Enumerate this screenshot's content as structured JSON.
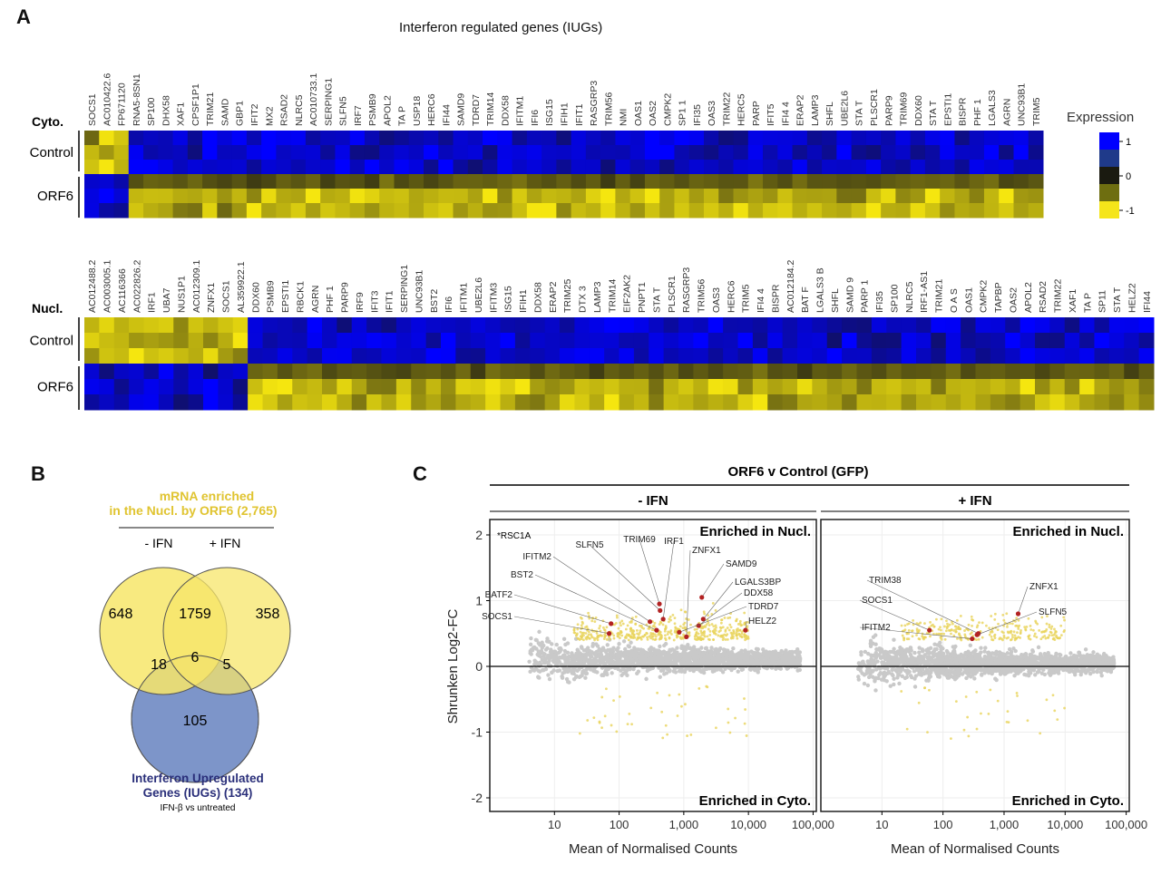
{
  "panel_a": {
    "letter": "A",
    "title": "Interferon regulated genes (IUGs)",
    "legend": {
      "title": "Expression",
      "ticks": [
        "1",
        "0",
        "-1"
      ],
      "colors": [
        "#0000ff",
        "#1f3a8a",
        "#1a1a10",
        "#6e6e10",
        "#f5e51a"
      ]
    },
    "cyto": {
      "label": "Cyto.",
      "groups": [
        "Control",
        "ORF6"
      ],
      "genes": [
        "SOCS1",
        "AC010422.6",
        "FP671120",
        "RNA5-8SN1",
        "SP100",
        "DHX58",
        "XAF1",
        "CPSF1P1",
        "TRIM21",
        "SAMD",
        "GBP1",
        "IFIT2",
        "MX2",
        "RSAD2",
        "NLRC5",
        "AC010733.1",
        "SERPING1",
        "SLFN5",
        "IRF7",
        "PSMB9",
        "APOL2",
        "TA P",
        "USP18",
        "HERC6",
        "IFI44",
        "SAMD9",
        "TDRD7",
        "TRIM14",
        "DDX58",
        "IFITM1",
        "IFI6",
        "ISG15",
        "IFIH1",
        "IFIT1",
        "RASGRP3",
        "TRIM56",
        "NMI",
        "OAS1",
        "OAS2",
        "CMPK2",
        "SP1 1",
        "IFI35",
        "OAS3",
        "TRIM22",
        "HERC5",
        "PARP",
        "IFIT5",
        "IFI4 4",
        "ERAP2",
        "LAMP3",
        "SHFL",
        "UBE2L6",
        "STA T",
        "PLSCR1",
        "PARP9",
        "TRIM69",
        "DDX60",
        "STA T",
        "EPSTI1",
        "BISPR",
        "PHF 1",
        "LGALS3",
        "AGRN",
        "UNC93B1",
        "TRIM5"
      ],
      "reversed_gene_count": 3
    },
    "nucl": {
      "label": "Nucl.",
      "groups": [
        "Control",
        "ORF6"
      ],
      "genes": [
        "AC012488.2",
        "AC003005.1",
        "AC116366",
        "AC022826.2",
        "IRF1",
        "UBA7",
        "NUS1P1",
        "AC012309.1",
        "ZNFX1",
        "SOCS1",
        "AL359922.1",
        "DDX60",
        "PSMB9",
        "EPSTI1",
        "RBCK1",
        "AGRN",
        "PHF 1",
        "PARP9",
        "IRF9",
        "IFIT3",
        "IFIT1",
        "SERPING1",
        "UNC93B1",
        "BST2",
        "IFI6",
        "IFITM1",
        "UBE2L6",
        "IFITM3",
        "ISG15",
        "IFIH1",
        "DDX58",
        "ERAP2",
        "TRIM25",
        "DTX 3",
        "LAMP3",
        "TRIM14",
        "EIF2AK2",
        "PNPT1",
        "STA T",
        "PLSCR1",
        "RASGRP3",
        "TRIM56",
        "OAS3",
        "HERC6",
        "TRIM5",
        "IFI4 4",
        "BISPR",
        "AC012184.2",
        "BAT F",
        "LGALS3 B",
        "SHFL",
        "SAMD 9",
        "PARP 1",
        "IFI35",
        "SP100",
        "NLRC5",
        "IRF1-AS1",
        "TRIM21",
        "O A S",
        "OAS1",
        "CMPK2",
        "TAPBP",
        "OAS2",
        "APOL2",
        "RSAD2",
        "TRIM22",
        "XAF1",
        "TA P",
        "SP11",
        "STA T",
        "HELZ2",
        "IFI44"
      ],
      "reversed_gene_count": 11
    }
  },
  "panel_b": {
    "letter": "B",
    "top_title_line1": "mRNA enriched",
    "top_title_line2": "in the Nucl. by ORF6 (2,765)",
    "set_minus_ifn": "- IFN",
    "set_plus_ifn": "+ IFN",
    "bottom_title_line1": "Interferon Upregulated",
    "bottom_title_line2": "Genes (IUGs) (134)",
    "bottom_subtitle": "IFN-β vs untreated",
    "counts": {
      "minus_only": "648",
      "both_ifn": "1759",
      "plus_only": "358",
      "minus_iug": "18",
      "all_three": "6",
      "plus_iug": "5",
      "iug_only": "105"
    },
    "colors": {
      "nucl": "#f7e66a",
      "iug": "#7d95c9",
      "title_yellow": "#e0c431",
      "title_blue": "#2a2f7a"
    }
  },
  "chart_data": [
    {
      "type": "scatter",
      "panel": "C",
      "title": "ORF6 v Control (GFP)",
      "subtitle": "- IFN",
      "xlabel": "Mean of Normalised Counts",
      "ylabel": "Shrunken Log2-FC",
      "xscale": "log",
      "xticks": [
        "10",
        "100",
        "1,000",
        "10,000",
        "100,000"
      ],
      "yticks": [
        "2",
        "1",
        "0",
        "-1",
        "-2"
      ],
      "ylim": [
        -2.3,
        2.3
      ],
      "grid": true,
      "annotation_top": "Enriched in Nucl.",
      "annotation_bottom": "Enriched in Cyto.",
      "colors": {
        "background": "#c8c8c8",
        "enriched": "#e8d35a",
        "highlight": "#b22222"
      },
      "labels": [
        {
          "gene": "*RSC1A",
          "x": 12,
          "y": 2.0
        },
        {
          "gene": "SOCS1",
          "x": 70,
          "y": 0.5
        },
        {
          "gene": "BATF2",
          "x": 75,
          "y": 0.65
        },
        {
          "gene": "BST2",
          "x": 380,
          "y": 0.55
        },
        {
          "gene": "IFITM2",
          "x": 300,
          "y": 0.68
        },
        {
          "gene": "SLFN5",
          "x": 430,
          "y": 0.85
        },
        {
          "gene": "TRIM69",
          "x": 420,
          "y": 0.95
        },
        {
          "gene": "IRF1",
          "x": 480,
          "y": 0.72
        },
        {
          "gene": "ZNFX1",
          "x": 1100,
          "y": 0.45
        },
        {
          "gene": "SAMD9",
          "x": 1900,
          "y": 1.05
        },
        {
          "gene": "LGALS3BP",
          "x": 2000,
          "y": 0.72
        },
        {
          "gene": "DDX58",
          "x": 1700,
          "y": 0.62
        },
        {
          "gene": "TDRD7",
          "x": 850,
          "y": 0.52
        },
        {
          "gene": "HELZ2",
          "x": 9000,
          "y": 0.55
        }
      ]
    },
    {
      "type": "scatter",
      "panel": "C",
      "subtitle": "+ IFN",
      "xlabel": "Mean of Normalised Counts",
      "xscale": "log",
      "xticks": [
        "10",
        "100",
        "1,000",
        "10,000",
        "100,000"
      ],
      "ylim": [
        -2.3,
        2.3
      ],
      "grid": true,
      "annotation_top": "Enriched in Nucl.",
      "annotation_bottom": "Enriched in Cyto.",
      "labels": [
        {
          "gene": "TRIM38",
          "x": 380,
          "y": 0.5
        },
        {
          "gene": "SOCS1",
          "x": 60,
          "y": 0.55
        },
        {
          "gene": "IFITM2",
          "x": 300,
          "y": 0.42
        },
        {
          "gene": "ZNFX1",
          "x": 1700,
          "y": 0.8
        },
        {
          "gene": "SLFN5",
          "x": 360,
          "y": 0.48
        }
      ]
    }
  ],
  "panel_c": {
    "letter": "C"
  }
}
